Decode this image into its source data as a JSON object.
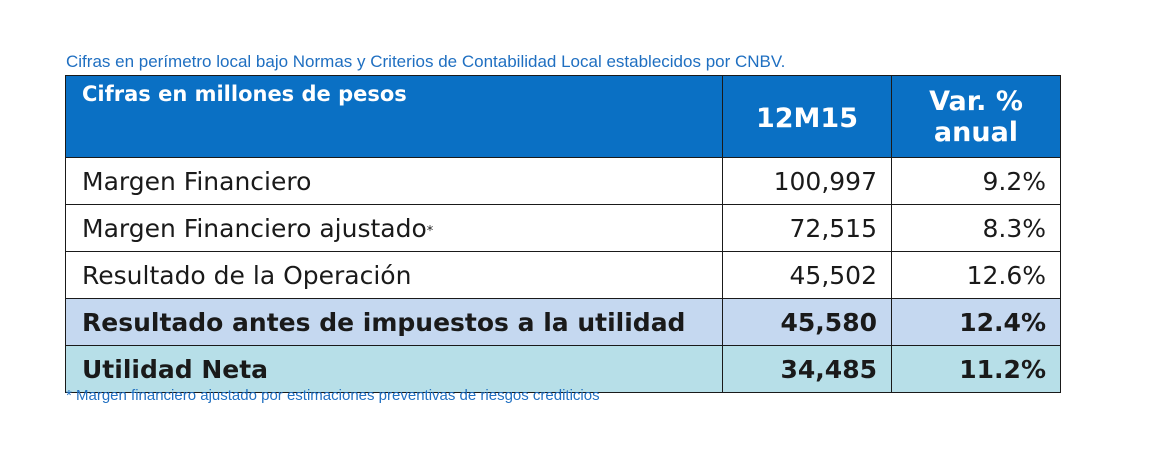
{
  "caption": "Cifras en perímetro local bajo Normas y Criterios de Contabilidad Local establecidos por CNBV.",
  "table": {
    "header": {
      "label": "Cifras en millones de pesos",
      "period": "12M15",
      "var_line1": "Var. %",
      "var_line2": "anual"
    },
    "rows": [
      {
        "label": "Margen Financiero",
        "value": "100,997",
        "var": "9.2%"
      },
      {
        "label": "Margen Financiero ajustado",
        "mark": "*",
        "value": "72,515",
        "var": "8.3%"
      },
      {
        "label": "Resultado de la Operación",
        "value": "45,502",
        "var": "12.6%"
      },
      {
        "label": "Resultado antes de impuestos a la utilidad",
        "value": "45,580",
        "var": "12.4%"
      },
      {
        "label": "Utilidad Neta",
        "value": "34,485",
        "var": "11.2%"
      }
    ],
    "colors": {
      "header_bg": "#0a70c4",
      "highlight_row_bg": "#c5d8f0",
      "net_row_bg": "#b7dfe8",
      "caption_text": "#1f6fc1"
    }
  },
  "footnote": "* Margen financiero ajustado por estimaciones preventivas de riesgos crediticios"
}
